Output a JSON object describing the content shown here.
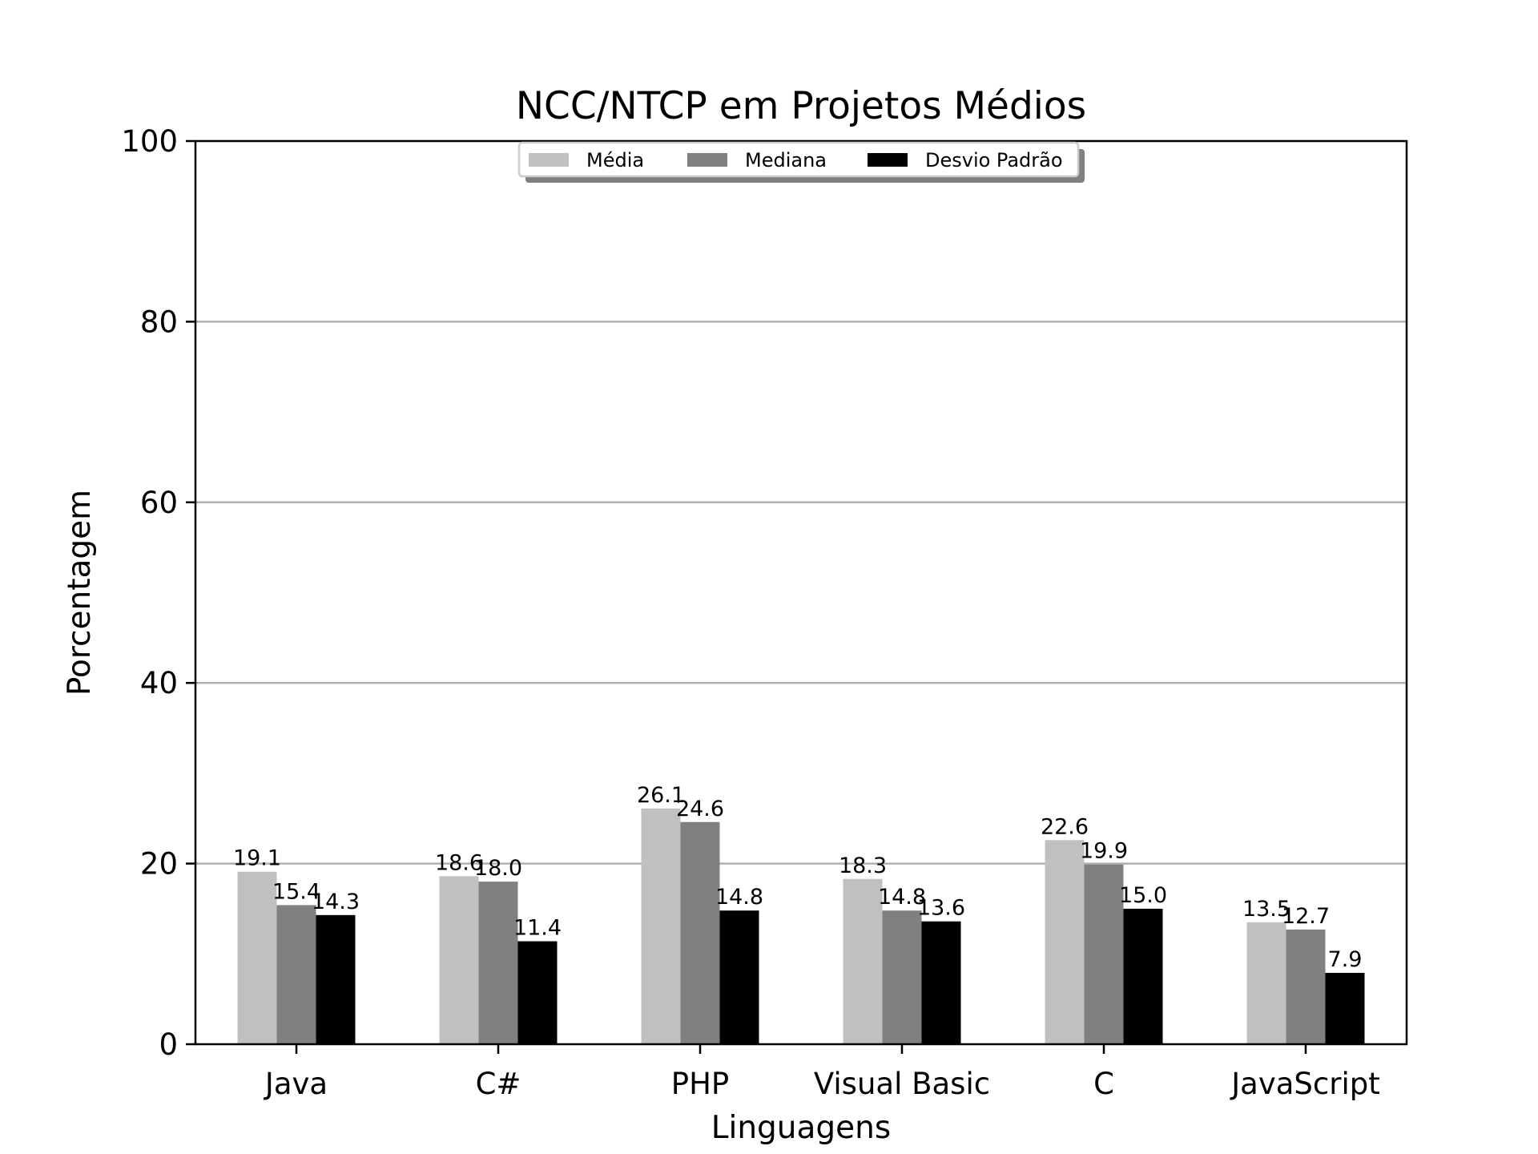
{
  "chart_data": {
    "type": "bar",
    "title": "NCC/NTCP em Projetos Médios",
    "xlabel": "Linguagens",
    "ylabel": "Porcentagem",
    "ylim": [
      0,
      100
    ],
    "yticks": [
      0,
      20,
      40,
      60,
      80,
      100
    ],
    "grid": "y",
    "legend_position": "top-center",
    "categories": [
      "Java",
      "C#",
      "PHP",
      "Visual Basic",
      "C",
      "JavaScript"
    ],
    "series": [
      {
        "name": "Média",
        "color": "#c0c0c0",
        "values": [
          19.1,
          18.6,
          26.1,
          18.3,
          22.6,
          13.5
        ]
      },
      {
        "name": "Mediana",
        "color": "#808080",
        "values": [
          15.4,
          18.0,
          24.6,
          14.8,
          19.9,
          12.7
        ]
      },
      {
        "name": "Desvio Padrão",
        "color": "#000000",
        "values": [
          14.3,
          11.4,
          14.8,
          13.6,
          15.0,
          7.9
        ]
      }
    ]
  }
}
